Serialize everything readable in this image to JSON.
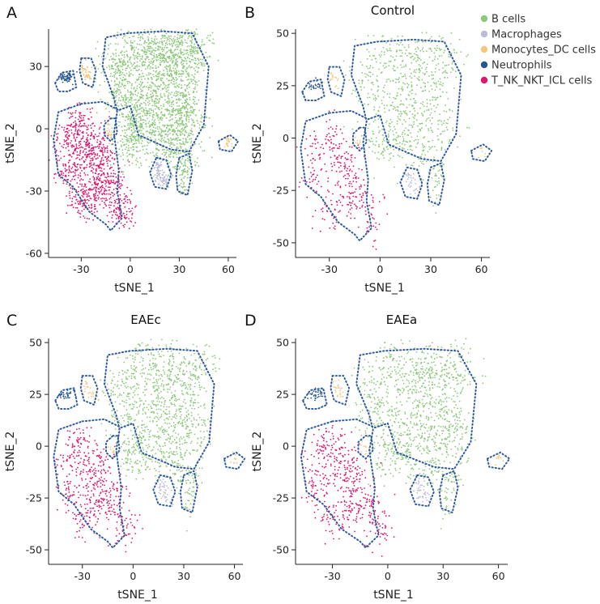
{
  "chart_data": [
    {
      "panel": "A",
      "title": "",
      "type": "scatter",
      "xlabel": "tSNE_1",
      "ylabel": "tSNE_2",
      "xlim": [
        -50,
        65
      ],
      "ylim": [
        -62,
        48
      ],
      "xticks": [
        -30,
        0,
        30,
        60
      ],
      "yticks": [
        -60,
        -30,
        0,
        30
      ],
      "density": 1.0
    },
    {
      "panel": "B",
      "title": "Control",
      "type": "scatter",
      "xlabel": "tSNE_1",
      "ylabel": "tSNE_2",
      "xlim": [
        -50,
        65
      ],
      "ylim": [
        -57,
        52
      ],
      "xticks": [
        -30,
        0,
        30,
        60
      ],
      "yticks": [
        -50,
        -25,
        0,
        25,
        50
      ],
      "density": 0.35
    },
    {
      "panel": "C",
      "title": "EAEc",
      "type": "scatter",
      "xlabel": "tSNE_1",
      "ylabel": "tSNE_2",
      "xlim": [
        -50,
        65
      ],
      "ylim": [
        -57,
        52
      ],
      "xticks": [
        -30,
        0,
        30,
        60
      ],
      "yticks": [
        -50,
        -25,
        0,
        25,
        50
      ],
      "density": 0.5
    },
    {
      "panel": "D",
      "title": "EAEa",
      "type": "scatter",
      "xlabel": "tSNE_1",
      "ylabel": "tSNE_2",
      "xlim": [
        -50,
        65
      ],
      "ylim": [
        -57,
        52
      ],
      "xticks": [
        -30,
        0,
        30,
        60
      ],
      "yticks": [
        -50,
        -25,
        0,
        25,
        50
      ],
      "density": 0.5
    }
  ],
  "legend": [
    {
      "label": "B cells",
      "color": "#8cc97a"
    },
    {
      "label": "Macrophages",
      "color": "#bdbbdc"
    },
    {
      "label": "Monocytes_DC cells",
      "color": "#f3c77d"
    },
    {
      "label": "Neutrophils",
      "color": "#27578f"
    },
    {
      "label": "T_NK_NKT_ICL cells",
      "color": "#e0156e"
    }
  ],
  "clusters": {
    "B cells": [
      [
        -7,
        30
      ],
      [
        15,
        30
      ],
      [
        30,
        30
      ],
      [
        5,
        40
      ],
      [
        22,
        40
      ],
      [
        -3,
        15
      ],
      [
        15,
        15
      ],
      [
        30,
        15
      ],
      [
        5,
        2
      ],
      [
        20,
        0
      ],
      [
        27,
        -10
      ],
      [
        2,
        -5
      ],
      [
        38,
        38
      ],
      [
        35,
        5
      ]
    ],
    "Macrophages": [
      [
        17,
        -18
      ],
      [
        18,
        -22
      ],
      [
        21,
        -25
      ]
    ],
    "Monocytes_DC cells": [
      [
        -28,
        29
      ],
      [
        -26,
        26
      ],
      [
        60,
        -7
      ],
      [
        -13,
        -2
      ]
    ],
    "Neutrophils": [
      [
        -41,
        25
      ],
      [
        -37,
        26
      ],
      [
        -39,
        24
      ]
    ],
    "T_NK_NKT_ICL cells": [
      [
        -30,
        2
      ],
      [
        -37,
        -5
      ],
      [
        -25,
        -12
      ],
      [
        -18,
        -20
      ],
      [
        -22,
        -30
      ],
      [
        -30,
        -35
      ],
      [
        -10,
        -28
      ],
      [
        -5,
        -40
      ],
      [
        -38,
        -20
      ],
      [
        -20,
        -8
      ]
    ],
    "B cells small": [
      [
        33,
        -20
      ],
      [
        32,
        -28
      ],
      [
        36,
        -16
      ]
    ]
  },
  "outlines": {
    "main": [
      [
        -30,
        12
      ],
      [
        -17,
        13
      ],
      [
        -7,
        9
      ],
      [
        0,
        11
      ],
      [
        5,
        -3
      ],
      [
        25,
        -10
      ],
      [
        36,
        -11
      ],
      [
        45,
        2
      ],
      [
        48,
        30
      ],
      [
        38,
        46
      ],
      [
        20,
        47
      ],
      [
        -2,
        46
      ],
      [
        -15,
        44
      ],
      [
        -17,
        30
      ],
      [
        -10,
        15
      ],
      [
        -8,
        8
      ],
      [
        -10,
        -2
      ],
      [
        -7,
        -20
      ],
      [
        -8,
        -30
      ],
      [
        -5,
        -43
      ],
      [
        -12,
        -49
      ],
      [
        -15,
        -46
      ],
      [
        -25,
        -40
      ],
      [
        -35,
        -28
      ],
      [
        -44,
        -22
      ],
      [
        -47,
        -5
      ],
      [
        -44,
        8
      ]
    ],
    "neutro": [
      [
        -46,
        22
      ],
      [
        -42,
        27
      ],
      [
        -35,
        28
      ],
      [
        -33,
        20
      ],
      [
        -38,
        18
      ],
      [
        -44,
        18
      ]
    ],
    "mono": [
      [
        -30,
        34
      ],
      [
        -24,
        34
      ],
      [
        -21,
        28
      ],
      [
        -23,
        20
      ],
      [
        -29,
        22
      ],
      [
        -31,
        28
      ]
    ],
    "mono2": [
      [
        -12,
        5
      ],
      [
        -9,
        5
      ],
      [
        -8,
        -2
      ],
      [
        -12,
        -6
      ],
      [
        -16,
        -3
      ],
      [
        -16,
        2
      ]
    ],
    "macro": [
      [
        16,
        -14
      ],
      [
        22,
        -15
      ],
      [
        25,
        -22
      ],
      [
        22,
        -29
      ],
      [
        15,
        -28
      ],
      [
        12,
        -21
      ]
    ],
    "bsmall": [
      [
        30,
        -14
      ],
      [
        36,
        -12
      ],
      [
        38,
        -20
      ],
      [
        35,
        -32
      ],
      [
        29,
        -30
      ],
      [
        28,
        -22
      ]
    ],
    "right": [
      [
        54,
        -6
      ],
      [
        61,
        -3
      ],
      [
        66,
        -6
      ],
      [
        62,
        -11
      ],
      [
        55,
        -10
      ]
    ]
  }
}
